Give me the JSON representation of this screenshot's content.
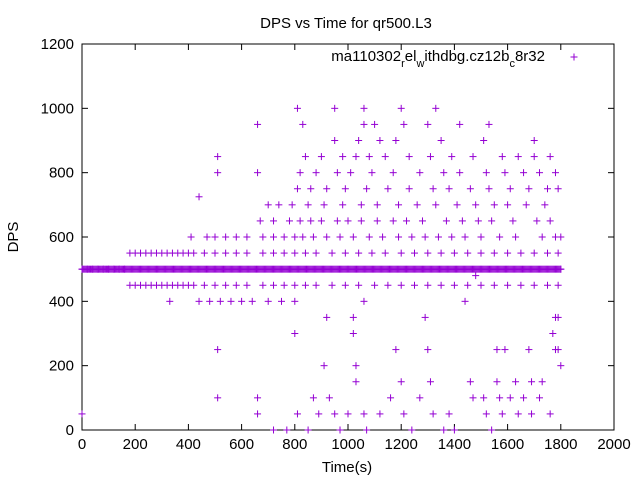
{
  "chart_data": {
    "type": "scatter",
    "title": "DPS vs Time for qr500.L3",
    "xlabel": "Time(s)",
    "ylabel": "DPS",
    "xlim": [
      0,
      2000
    ],
    "ylim": [
      0,
      1200
    ],
    "xticks": [
      0,
      200,
      400,
      600,
      800,
      1000,
      1200,
      1400,
      1600,
      1800,
      2000
    ],
    "yticks": [
      0,
      200,
      400,
      600,
      800,
      1000,
      1200
    ],
    "grid": false,
    "legend_position": "top-right",
    "series_color": "#9400d3",
    "series": [
      {
        "name_parts": [
          "ma110302",
          "r",
          "el",
          "w",
          "ithdbg.cz12b",
          "c",
          "8r32"
        ],
        "marker": "plus",
        "points": [
          [
            0,
            50
          ],
          [
            0,
            500
          ],
          [
            20,
            500
          ],
          [
            40,
            500
          ],
          [
            60,
            500
          ],
          [
            80,
            500
          ],
          [
            100,
            500
          ],
          [
            120,
            500
          ],
          [
            140,
            500
          ],
          [
            160,
            500
          ],
          [
            180,
            550
          ],
          [
            180,
            450
          ],
          [
            200,
            550
          ],
          [
            200,
            450
          ],
          [
            220,
            550
          ],
          [
            220,
            450
          ],
          [
            240,
            550
          ],
          [
            240,
            450
          ],
          [
            260,
            550
          ],
          [
            260,
            450
          ],
          [
            280,
            550
          ],
          [
            280,
            450
          ],
          [
            300,
            550
          ],
          [
            300,
            450
          ],
          [
            320,
            550
          ],
          [
            320,
            450
          ],
          [
            330,
            400
          ],
          [
            340,
            550
          ],
          [
            340,
            450
          ],
          [
            360,
            550
          ],
          [
            360,
            450
          ],
          [
            380,
            550
          ],
          [
            380,
            450
          ],
          [
            400,
            550
          ],
          [
            400,
            450
          ],
          [
            410,
            600
          ],
          [
            420,
            550
          ],
          [
            420,
            450
          ],
          [
            440,
            725
          ],
          [
            440,
            400
          ],
          [
            460,
            550
          ],
          [
            460,
            450
          ],
          [
            470,
            600
          ],
          [
            480,
            400
          ],
          [
            500,
            600
          ],
          [
            500,
            550
          ],
          [
            500,
            450
          ],
          [
            510,
            850
          ],
          [
            510,
            800
          ],
          [
            510,
            250
          ],
          [
            510,
            100
          ],
          [
            520,
            400
          ],
          [
            540,
            600
          ],
          [
            540,
            550
          ],
          [
            540,
            450
          ],
          [
            560,
            400
          ],
          [
            580,
            600
          ],
          [
            580,
            550
          ],
          [
            580,
            450
          ],
          [
            600,
            400
          ],
          [
            620,
            600
          ],
          [
            620,
            550
          ],
          [
            620,
            450
          ],
          [
            640,
            400
          ],
          [
            660,
            950
          ],
          [
            660,
            800
          ],
          [
            660,
            100
          ],
          [
            660,
            50
          ],
          [
            670,
            650
          ],
          [
            680,
            600
          ],
          [
            680,
            550
          ],
          [
            680,
            450
          ],
          [
            700,
            700
          ],
          [
            700,
            400
          ],
          [
            720,
            650
          ],
          [
            720,
            600
          ],
          [
            720,
            550
          ],
          [
            720,
            450
          ],
          [
            720,
            0
          ],
          [
            740,
            700
          ],
          [
            750,
            400
          ],
          [
            760,
            600
          ],
          [
            760,
            550
          ],
          [
            760,
            450
          ],
          [
            770,
            0
          ],
          [
            780,
            650
          ],
          [
            790,
            700
          ],
          [
            800,
            300
          ],
          [
            800,
            600
          ],
          [
            800,
            550
          ],
          [
            800,
            450
          ],
          [
            800,
            400
          ],
          [
            810,
            1000
          ],
          [
            810,
            750
          ],
          [
            810,
            50
          ],
          [
            820,
            650
          ],
          [
            820,
            800
          ],
          [
            830,
            950
          ],
          [
            830,
            600
          ],
          [
            840,
            850
          ],
          [
            840,
            550
          ],
          [
            840,
            450
          ],
          [
            850,
            700
          ],
          [
            850,
            0
          ],
          [
            860,
            750
          ],
          [
            860,
            650
          ],
          [
            870,
            600
          ],
          [
            870,
            100
          ],
          [
            880,
            800
          ],
          [
            880,
            550
          ],
          [
            880,
            450
          ],
          [
            890,
            50
          ],
          [
            900,
            650
          ],
          [
            900,
            850
          ],
          [
            910,
            700
          ],
          [
            910,
            200
          ],
          [
            920,
            750
          ],
          [
            920,
            600
          ],
          [
            920,
            350
          ],
          [
            930,
            100
          ],
          [
            940,
            550
          ],
          [
            940,
            450
          ],
          [
            950,
            1000
          ],
          [
            950,
            900
          ],
          [
            950,
            50
          ],
          [
            960,
            800
          ],
          [
            960,
            650
          ],
          [
            970,
            600
          ],
          [
            970,
            0
          ],
          [
            980,
            850
          ],
          [
            980,
            700
          ],
          [
            990,
            750
          ],
          [
            990,
            550
          ],
          [
            990,
            450
          ],
          [
            1000,
            650
          ],
          [
            1000,
            50
          ],
          [
            1010,
            800
          ],
          [
            1020,
            600
          ],
          [
            1020,
            350
          ],
          [
            1020,
            300
          ],
          [
            1030,
            850
          ],
          [
            1030,
            200
          ],
          [
            1030,
            150
          ],
          [
            1040,
            900
          ],
          [
            1040,
            550
          ],
          [
            1040,
            450
          ],
          [
            1050,
            700
          ],
          [
            1050,
            650
          ],
          [
            1060,
            1000
          ],
          [
            1060,
            950
          ],
          [
            1060,
            400
          ],
          [
            1060,
            50
          ],
          [
            1070,
            750
          ],
          [
            1070,
            0
          ],
          [
            1080,
            600
          ],
          [
            1080,
            850
          ],
          [
            1090,
            800
          ],
          [
            1090,
            550
          ],
          [
            1100,
            450
          ],
          [
            1100,
            950
          ],
          [
            1110,
            650
          ],
          [
            1110,
            700
          ],
          [
            1120,
            900
          ],
          [
            1120,
            50
          ],
          [
            1130,
            600
          ],
          [
            1140,
            850
          ],
          [
            1140,
            550
          ],
          [
            1150,
            450
          ],
          [
            1150,
            750
          ],
          [
            1160,
            100
          ],
          [
            1170,
            650
          ],
          [
            1170,
            800
          ],
          [
            1180,
            250
          ],
          [
            1180,
            900
          ],
          [
            1190,
            600
          ],
          [
            1190,
            700
          ],
          [
            1200,
            1000
          ],
          [
            1200,
            550
          ],
          [
            1200,
            450
          ],
          [
            1200,
            150
          ],
          [
            1210,
            950
          ],
          [
            1210,
            50
          ],
          [
            1220,
            650
          ],
          [
            1230,
            850
          ],
          [
            1230,
            750
          ],
          [
            1240,
            600
          ],
          [
            1240,
            0
          ],
          [
            1250,
            550
          ],
          [
            1250,
            450
          ],
          [
            1260,
            700
          ],
          [
            1270,
            800
          ],
          [
            1270,
            100
          ],
          [
            1280,
            650
          ],
          [
            1290,
            350
          ],
          [
            1290,
            600
          ],
          [
            1300,
            950
          ],
          [
            1300,
            550
          ],
          [
            1300,
            450
          ],
          [
            1300,
            250
          ],
          [
            1310,
            850
          ],
          [
            1310,
            150
          ],
          [
            1320,
            750
          ],
          [
            1320,
            50
          ],
          [
            1330,
            1000
          ],
          [
            1330,
            700
          ],
          [
            1340,
            600
          ],
          [
            1350,
            900
          ],
          [
            1350,
            550
          ],
          [
            1350,
            450
          ],
          [
            1360,
            800
          ],
          [
            1360,
            0
          ],
          [
            1370,
            650
          ],
          [
            1380,
            750
          ],
          [
            1380,
            50
          ],
          [
            1390,
            850
          ],
          [
            1390,
            600
          ],
          [
            1400,
            550
          ],
          [
            1400,
            450
          ],
          [
            1400,
            0
          ],
          [
            1410,
            700
          ],
          [
            1420,
            950
          ],
          [
            1420,
            800
          ],
          [
            1430,
            650
          ],
          [
            1440,
            400
          ],
          [
            1440,
            600
          ],
          [
            1450,
            550
          ],
          [
            1450,
            450
          ],
          [
            1460,
            750
          ],
          [
            1460,
            150
          ],
          [
            1470,
            850
          ],
          [
            1470,
            100
          ],
          [
            1480,
            700
          ],
          [
            1480,
            480
          ],
          [
            1490,
            650
          ],
          [
            1500,
            600
          ],
          [
            1500,
            550
          ],
          [
            1500,
            450
          ],
          [
            1510,
            900
          ],
          [
            1510,
            100
          ],
          [
            1520,
            800
          ],
          [
            1520,
            50
          ],
          [
            1530,
            950
          ],
          [
            1530,
            750
          ],
          [
            1540,
            650
          ],
          [
            1540,
            0
          ],
          [
            1550,
            700
          ],
          [
            1550,
            550
          ],
          [
            1550,
            450
          ],
          [
            1560,
            250
          ],
          [
            1560,
            150
          ],
          [
            1570,
            600
          ],
          [
            1570,
            100
          ],
          [
            1580,
            850
          ],
          [
            1580,
            50
          ],
          [
            1590,
            800
          ],
          [
            1590,
            250
          ],
          [
            1600,
            700
          ],
          [
            1600,
            550
          ],
          [
            1600,
            450
          ],
          [
            1610,
            750
          ],
          [
            1610,
            100
          ],
          [
            1620,
            650
          ],
          [
            1630,
            600
          ],
          [
            1630,
            150
          ],
          [
            1640,
            850
          ],
          [
            1640,
            50
          ],
          [
            1650,
            550
          ],
          [
            1650,
            450
          ],
          [
            1660,
            800
          ],
          [
            1660,
            100
          ],
          [
            1670,
            700
          ],
          [
            1680,
            750
          ],
          [
            1680,
            250
          ],
          [
            1690,
            150
          ],
          [
            1690,
            50
          ],
          [
            1700,
            850
          ],
          [
            1700,
            900
          ],
          [
            1700,
            550
          ],
          [
            1700,
            450
          ],
          [
            1710,
            650
          ],
          [
            1720,
            800
          ],
          [
            1720,
            100
          ],
          [
            1730,
            600
          ],
          [
            1730,
            150
          ],
          [
            1740,
            700
          ],
          [
            1750,
            750
          ],
          [
            1750,
            550
          ],
          [
            1750,
            450
          ],
          [
            1760,
            850
          ],
          [
            1760,
            650
          ],
          [
            1760,
            50
          ],
          [
            1770,
            300
          ],
          [
            1780,
            800
          ],
          [
            1780,
            600
          ],
          [
            1780,
            350
          ],
          [
            1780,
            250
          ],
          [
            1790,
            750
          ],
          [
            1790,
            550
          ],
          [
            1790,
            450
          ],
          [
            1790,
            350
          ],
          [
            1790,
            250
          ],
          [
            1800,
            500
          ],
          [
            1800,
            200
          ],
          [
            1800,
            600
          ]
        ]
      }
    ]
  }
}
